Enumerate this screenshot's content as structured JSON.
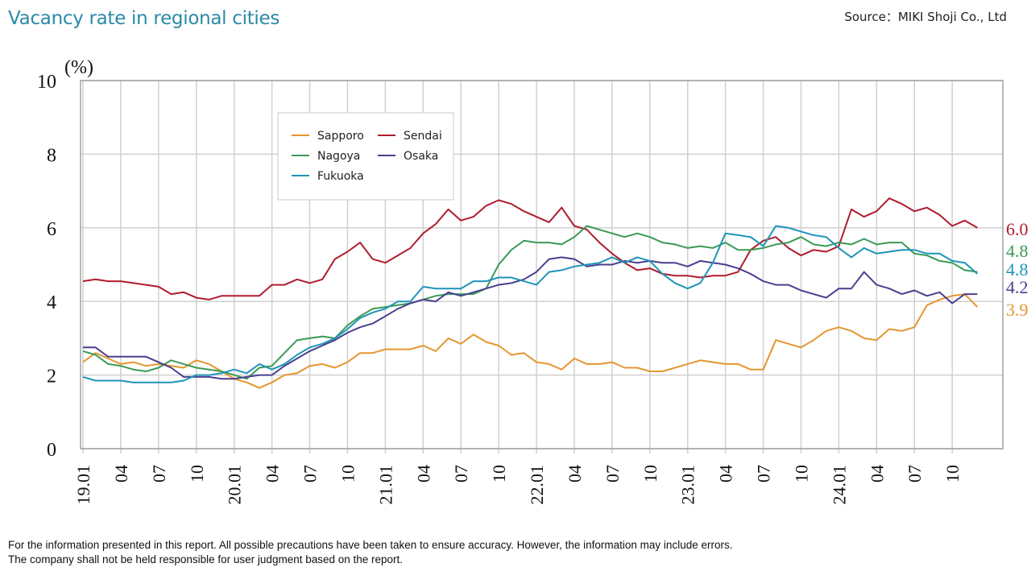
{
  "header": {
    "title": "Vacancy rate in regional cities",
    "source": "Source：MIKI Shoji Co., Ltd"
  },
  "footnote": {
    "line1": "For the information presented in this report. All possible precautions have been taken to ensure accuracy. However, the information may include errors.",
    "line2": "The company shall not be held responsible for user judgment based on the report."
  },
  "chart_data": {
    "type": "line",
    "title": "Vacancy rate in regional cities",
    "ylabel": "(%)",
    "xlabel": "",
    "ylim": [
      0,
      10
    ],
    "yticks": [
      "0",
      "2",
      "4",
      "6",
      "8",
      "10"
    ],
    "xtick_labels": [
      "19.01",
      "04",
      "07",
      "10",
      "20.01",
      "04",
      "07",
      "10",
      "21.01",
      "04",
      "07",
      "10",
      "22.01",
      "04",
      "07",
      "10",
      "23.01",
      "04",
      "07",
      "10",
      "24.01",
      "04",
      "07",
      "10"
    ],
    "x_start": "2019-01",
    "x_months": 72,
    "grid": true,
    "legend_position": "upper-left-center",
    "series": [
      {
        "name": "Sapporo",
        "color": "#e5962f",
        "end_label": "3.9",
        "values": [
          2.35,
          2.6,
          2.45,
          2.3,
          2.35,
          2.25,
          2.3,
          2.25,
          2.2,
          2.4,
          2.3,
          2.1,
          1.9,
          1.8,
          1.65,
          1.8,
          2.0,
          2.05,
          2.25,
          2.3,
          2.2,
          2.35,
          2.6,
          2.6,
          2.7,
          2.7,
          2.7,
          2.8,
          2.65,
          3.0,
          2.85,
          3.1,
          2.9,
          2.8,
          2.55,
          2.6,
          2.35,
          2.3,
          2.15,
          2.45,
          2.3,
          2.3,
          2.35,
          2.2,
          2.2,
          2.1,
          2.1,
          2.2,
          2.3,
          2.4,
          2.35,
          2.3,
          2.3,
          2.15,
          2.15,
          2.95,
          2.85,
          2.75,
          2.95,
          3.2,
          3.3,
          3.2,
          3.0,
          2.95,
          3.25,
          3.2,
          3.3,
          3.9,
          4.05,
          4.15,
          4.2,
          3.85
        ]
      },
      {
        "name": "Sendai",
        "color": "#b01c2e",
        "end_label": "6.0",
        "values": [
          4.55,
          4.6,
          4.55,
          4.55,
          4.5,
          4.45,
          4.4,
          4.2,
          4.25,
          4.1,
          4.05,
          4.15,
          4.15,
          4.15,
          4.15,
          4.45,
          4.45,
          4.6,
          4.5,
          4.6,
          5.15,
          5.35,
          5.6,
          5.15,
          5.05,
          5.25,
          5.45,
          5.85,
          6.1,
          6.5,
          6.2,
          6.3,
          6.6,
          6.75,
          6.65,
          6.45,
          6.3,
          6.15,
          6.55,
          6.05,
          5.95,
          5.6,
          5.3,
          5.05,
          4.85,
          4.9,
          4.75,
          4.7,
          4.7,
          4.65,
          4.7,
          4.7,
          4.8,
          5.4,
          5.65,
          5.75,
          5.45,
          5.25,
          5.4,
          5.35,
          5.5,
          6.5,
          6.3,
          6.45,
          6.8,
          6.65,
          6.45,
          6.55,
          6.35,
          6.05,
          6.2,
          6.0
        ]
      },
      {
        "name": "Nagoya",
        "color": "#3a9a57",
        "end_label": "4.8",
        "values": [
          2.65,
          2.55,
          2.3,
          2.25,
          2.15,
          2.1,
          2.2,
          2.4,
          2.3,
          2.2,
          2.15,
          2.1,
          2.0,
          1.9,
          2.2,
          2.25,
          2.6,
          2.95,
          3.0,
          3.05,
          3.0,
          3.35,
          3.6,
          3.8,
          3.85,
          3.9,
          3.95,
          4.05,
          4.15,
          4.2,
          4.2,
          4.2,
          4.35,
          5.0,
          5.4,
          5.65,
          5.6,
          5.6,
          5.55,
          5.75,
          6.05,
          5.95,
          5.85,
          5.75,
          5.85,
          5.75,
          5.6,
          5.55,
          5.45,
          5.5,
          5.45,
          5.6,
          5.4,
          5.4,
          5.45,
          5.55,
          5.6,
          5.75,
          5.55,
          5.5,
          5.6,
          5.55,
          5.7,
          5.55,
          5.6,
          5.6,
          5.3,
          5.25,
          5.1,
          5.05,
          4.85,
          4.8
        ]
      },
      {
        "name": "Osaka",
        "color": "#4a3f8f",
        "end_label": "4.2",
        "values": [
          2.75,
          2.75,
          2.5,
          2.5,
          2.5,
          2.5,
          2.35,
          2.2,
          1.95,
          1.95,
          1.95,
          1.9,
          1.9,
          1.95,
          2.0,
          2.0,
          2.25,
          2.45,
          2.65,
          2.8,
          2.95,
          3.15,
          3.3,
          3.4,
          3.6,
          3.8,
          3.95,
          4.05,
          4.0,
          4.25,
          4.15,
          4.25,
          4.35,
          4.45,
          4.5,
          4.6,
          4.8,
          5.15,
          5.2,
          5.15,
          4.95,
          5.0,
          5.0,
          5.1,
          5.05,
          5.1,
          5.05,
          5.05,
          4.95,
          5.1,
          5.05,
          5.0,
          4.9,
          4.75,
          4.55,
          4.45,
          4.45,
          4.3,
          4.2,
          4.1,
          4.35,
          4.35,
          4.8,
          4.45,
          4.35,
          4.2,
          4.3,
          4.15,
          4.25,
          3.95,
          4.2,
          4.2
        ]
      },
      {
        "name": "Fukuoka",
        "color": "#1f94b8",
        "end_label": "4.8",
        "values": [
          1.95,
          1.85,
          1.85,
          1.85,
          1.8,
          1.8,
          1.8,
          1.8,
          1.85,
          2.0,
          2.0,
          2.05,
          2.15,
          2.05,
          2.3,
          2.15,
          2.3,
          2.55,
          2.75,
          2.85,
          3.0,
          3.25,
          3.55,
          3.7,
          3.8,
          4.0,
          4.0,
          4.4,
          4.35,
          4.35,
          4.35,
          4.55,
          4.55,
          4.65,
          4.65,
          4.55,
          4.45,
          4.8,
          4.85,
          4.95,
          5.0,
          5.05,
          5.2,
          5.05,
          5.2,
          5.1,
          4.75,
          4.5,
          4.35,
          4.5,
          5.05,
          5.85,
          5.8,
          5.75,
          5.5,
          6.05,
          6.0,
          5.9,
          5.8,
          5.75,
          5.45,
          5.2,
          5.45,
          5.3,
          5.35,
          5.4,
          5.4,
          5.3,
          5.3,
          5.1,
          5.05,
          4.75
        ]
      }
    ]
  }
}
